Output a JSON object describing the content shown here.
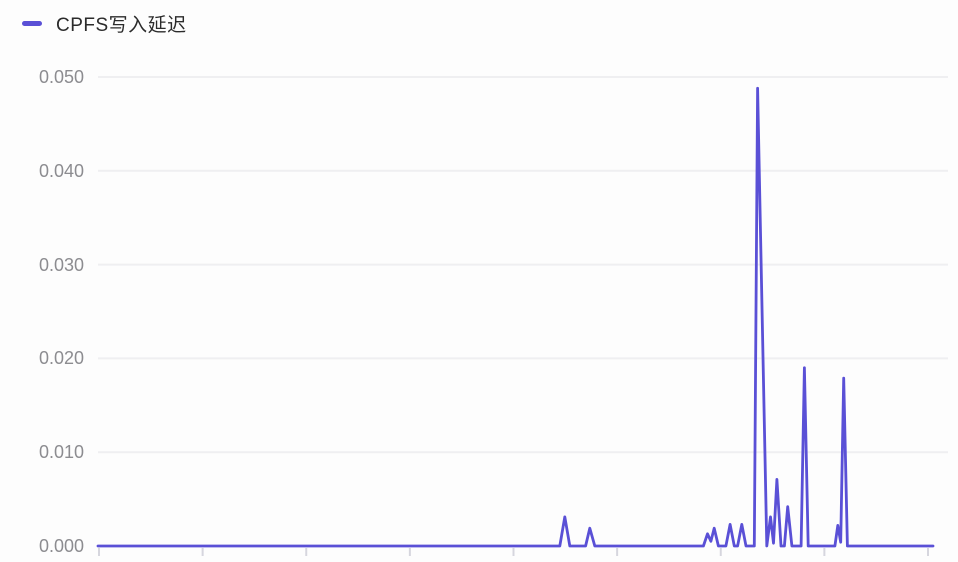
{
  "legend": {
    "label": "CPFS写入延迟"
  },
  "colors": {
    "series": "#5a50d6",
    "grid": "#efeff1",
    "tick": "#d6d6de",
    "axis_label": "#8c8c90"
  },
  "chart_data": {
    "type": "line",
    "title": "CPFS写入延迟",
    "xlabel": "",
    "ylabel": "",
    "ylim": [
      0,
      0.05
    ],
    "grid": true,
    "legend_position": "top-left",
    "x_axis": {
      "tick_count": 9,
      "labels_visible": false
    },
    "ytick_labels": [
      "0.000",
      "0.010",
      "0.020",
      "0.030",
      "0.040",
      "0.050"
    ],
    "ytick_values": [
      0,
      0.01,
      0.02,
      0.03,
      0.04,
      0.05
    ],
    "series": [
      {
        "name": "CPFS写入延迟",
        "color": "#5a50d6",
        "x_unit": "percent-of-range",
        "points": [
          [
            0,
            0
          ],
          [
            55.3,
            0
          ],
          [
            55.9,
            0.0031
          ],
          [
            56.5,
            0
          ],
          [
            58.4,
            0
          ],
          [
            58.9,
            0.0019
          ],
          [
            59.5,
            0
          ],
          [
            72.5,
            0
          ],
          [
            73.0,
            0.0013
          ],
          [
            73.4,
            0.0005
          ],
          [
            73.8,
            0.0019
          ],
          [
            74.3,
            0
          ],
          [
            75.2,
            0
          ],
          [
            75.7,
            0.0023
          ],
          [
            76.2,
            0
          ],
          [
            76.6,
            0
          ],
          [
            77.1,
            0.0023
          ],
          [
            77.6,
            0
          ],
          [
            78.6,
            0
          ],
          [
            79.0,
            0.0488
          ],
          [
            80.1,
            0
          ],
          [
            80.54,
            0.0031
          ],
          [
            80.9,
            0.0003
          ],
          [
            81.3,
            0.0071
          ],
          [
            81.8,
            0
          ],
          [
            82.2,
            0
          ],
          [
            82.6,
            0.0042
          ],
          [
            83.1,
            0
          ],
          [
            84.2,
            0
          ],
          [
            84.6,
            0.019
          ],
          [
            85.05,
            0
          ],
          [
            88.25,
            0
          ],
          [
            88.6,
            0.0022
          ],
          [
            88.95,
            0.0004
          ],
          [
            89.3,
            0.0179
          ],
          [
            89.75,
            0
          ],
          [
            100,
            0
          ]
        ]
      }
    ]
  }
}
